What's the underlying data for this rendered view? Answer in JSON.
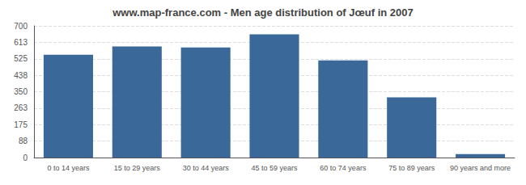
{
  "chart_data": {
    "type": "bar",
    "title": "www.map-france.com - Men age distribution of Jœuf in 2007",
    "categories": [
      "0 to 14 years",
      "15 to 29 years",
      "30 to 44 years",
      "45 to 59 years",
      "60 to 74 years",
      "75 to 89 years",
      "90 years and more"
    ],
    "values": [
      546,
      590,
      585,
      655,
      516,
      320,
      18
    ],
    "color": "#3a6999",
    "ylim": [
      0,
      700
    ],
    "yticks": [
      0,
      88,
      175,
      263,
      350,
      438,
      525,
      613,
      700
    ],
    "grid": true
  }
}
